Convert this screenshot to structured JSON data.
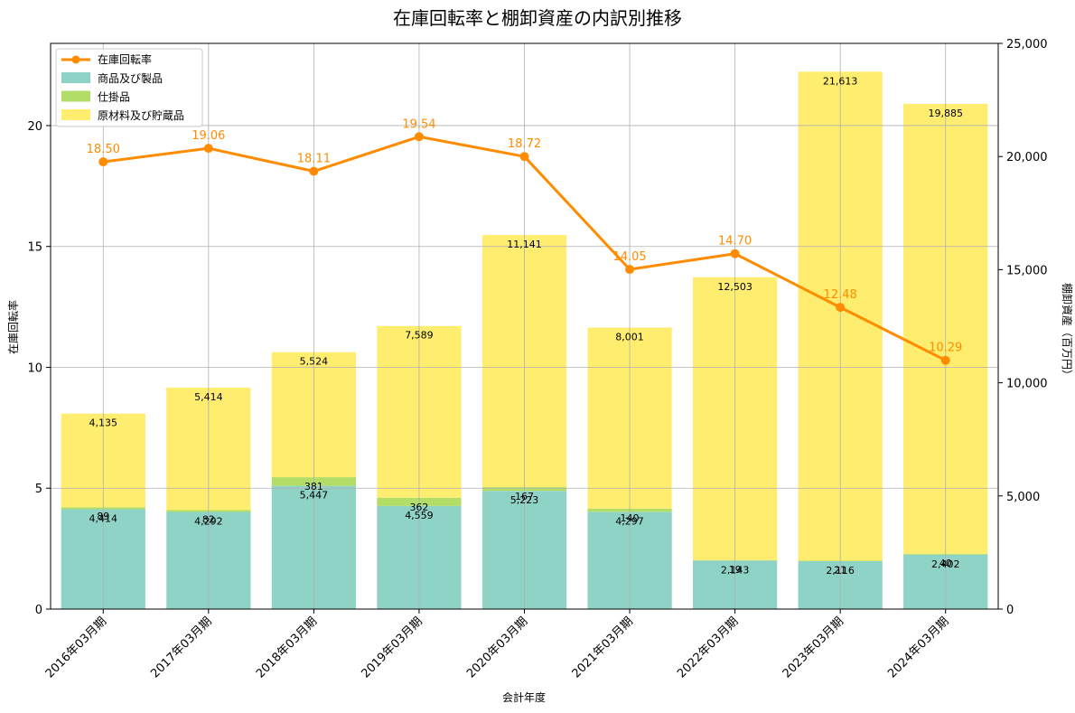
{
  "chart_data": {
    "type": "bar",
    "title": "在庫回転率と棚卸資産の内訳別推移",
    "xlabel": "会計年度",
    "ylabel_left": "在庫回転率",
    "ylabel_right": "棚卸資産（百万円）",
    "categories": [
      "2016年03月期",
      "2017年03月期",
      "2018年03月期",
      "2019年03月期",
      "2020年03月期",
      "2021年03月期",
      "2022年03月期",
      "2023年03月期",
      "2024年03月期"
    ],
    "ylim_left": [
      0,
      23.4
    ],
    "ylim_right": [
      0,
      25000
    ],
    "yticks_left": [
      0,
      5,
      10,
      15,
      20
    ],
    "yticks_right": [
      0,
      5000,
      10000,
      15000,
      20000,
      25000
    ],
    "grid": true,
    "legend_position": "top-left",
    "stack_series": [
      {
        "name": "商品及び製品",
        "color": "#8fd3c7",
        "values": [
          4414,
          4292,
          5447,
          4559,
          5223,
          4297,
          2143,
          2116,
          2402
        ]
      },
      {
        "name": "仕掛品",
        "color": "#b2de68",
        "values": [
          89,
          82,
          381,
          362,
          167,
          140,
          19,
          21,
          40
        ]
      },
      {
        "name": "原材料及び貯蔵品",
        "color": "#ffed6f",
        "values": [
          4135,
          5414,
          5524,
          7589,
          11141,
          8001,
          12503,
          21613,
          19885
        ]
      }
    ],
    "stack_labels": [
      [
        "4,414",
        "4,292",
        "5,447",
        "4,559",
        "5,223",
        "4,297",
        "2,143",
        "2,116",
        "2,402"
      ],
      [
        "89",
        "82",
        "381",
        "362",
        "167",
        "140",
        "19",
        "21",
        "40"
      ],
      [
        "4,135",
        "5,414",
        "5,524",
        "7,589",
        "11,141",
        "8,001",
        "12,503",
        "21,613",
        "19,885"
      ]
    ],
    "line_series": {
      "name": "在庫回転率",
      "color": "#ff8c00",
      "values": [
        18.5,
        19.06,
        18.11,
        19.54,
        18.72,
        14.05,
        14.7,
        12.48,
        10.29
      ],
      "labels": [
        "18.50",
        "19.06",
        "18.11",
        "19.54",
        "18.72",
        "14.05",
        "14.70",
        "12.48",
        "10.29"
      ]
    },
    "left_tick_labels": [
      "0",
      "5",
      "10",
      "15",
      "20"
    ],
    "right_tick_labels": [
      "0",
      "5,000",
      "10,000",
      "15,000",
      "20,000",
      "25,000"
    ]
  }
}
